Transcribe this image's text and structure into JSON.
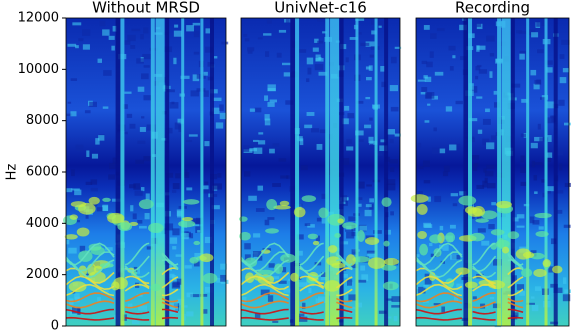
{
  "chart_data": [
    {
      "type": "spectrogram",
      "title": "Without MRSD",
      "ylabel": "Hz",
      "ylim": [
        0,
        12000
      ],
      "yticks": [
        0,
        2000,
        4000,
        6000,
        8000,
        10000,
        12000
      ]
    },
    {
      "type": "spectrogram",
      "title": "UnivNet-c16"
    },
    {
      "type": "spectrogram",
      "title": "Recording"
    }
  ]
}
